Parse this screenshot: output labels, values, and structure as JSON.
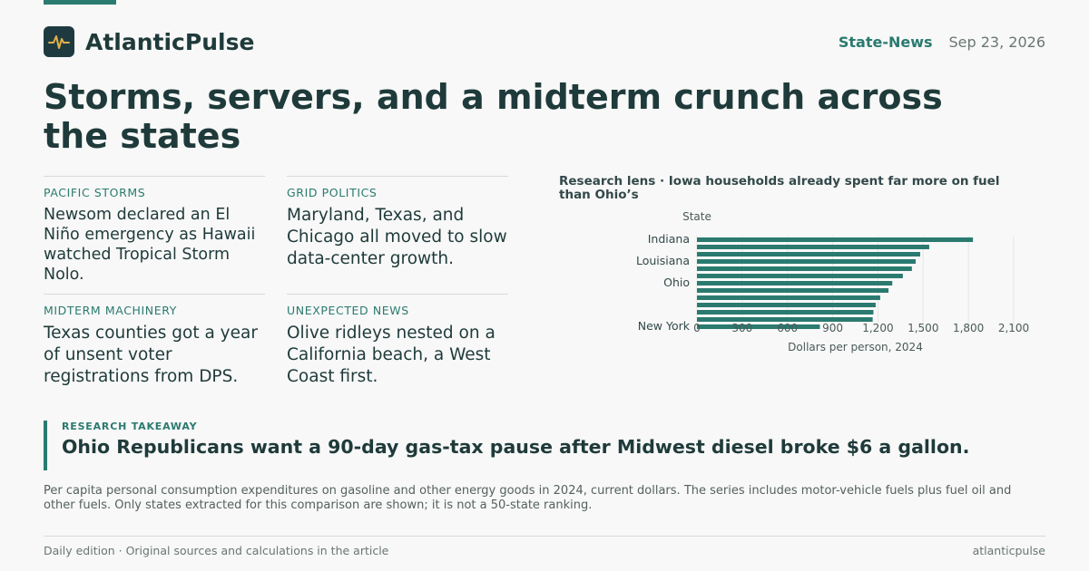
{
  "brand": {
    "name": "AtlanticPulse",
    "logo_icon": "pulse-icon",
    "accent": "#2b7a70"
  },
  "header": {
    "section": "State-News",
    "date": "Sep 23, 2026"
  },
  "headline": "Storms, servers, and a midterm crunch across the states",
  "stories": [
    {
      "kicker": "PACIFIC STORMS",
      "body": "Newsom declared an El Niño emergency as Hawaii watched Tropical Storm Nolo."
    },
    {
      "kicker": "GRID POLITICS",
      "body": "Maryland, Texas, and Chicago all moved to slow data-center growth."
    },
    {
      "kicker": "MIDTERM MACHINERY",
      "body": "Texas counties got a year of unsent voter registrations from DPS."
    },
    {
      "kicker": "UNEXPECTED NEWS",
      "body": "Olive ridleys nested on a California beach, a West Coast first."
    }
  ],
  "chart_title": "Research lens · Iowa households already spent far more on fuel than Ohio’s",
  "chart_data": {
    "type": "bar",
    "orientation": "horizontal",
    "ylabel": "State",
    "xlabel": "Dollars per person, 2024",
    "categories": [
      "Indiana",
      "",
      "",
      "Louisiana",
      "",
      "",
      "Ohio",
      "",
      "",
      "",
      "",
      "",
      "New York"
    ],
    "values": [
      1830,
      1540,
      1480,
      1450,
      1425,
      1365,
      1295,
      1270,
      1215,
      1185,
      1170,
      1165,
      815
    ],
    "xlim": [
      0,
      2100
    ],
    "xticks": [
      "0",
      "300",
      "600",
      "900",
      "1,200",
      "1,500",
      "1,800",
      "2,100"
    ],
    "grid": true,
    "bar_color": "#2b7a70"
  },
  "takeaway": {
    "label": "RESEARCH TAKEAWAY",
    "text": "Ohio Republicans want a 90-day gas-tax pause after Midwest diesel broke $6 a gallon."
  },
  "note": "Per capita personal consumption expenditures on gasoline and other energy goods in 2024, current dollars. The series includes motor-vehicle fuels plus fuel oil and other fuels. Only states extracted for this comparison are shown; it is not a 50-state ranking.",
  "footer": {
    "left": "Daily edition · Original sources and calculations in the article",
    "right": "atlanticpulse"
  }
}
